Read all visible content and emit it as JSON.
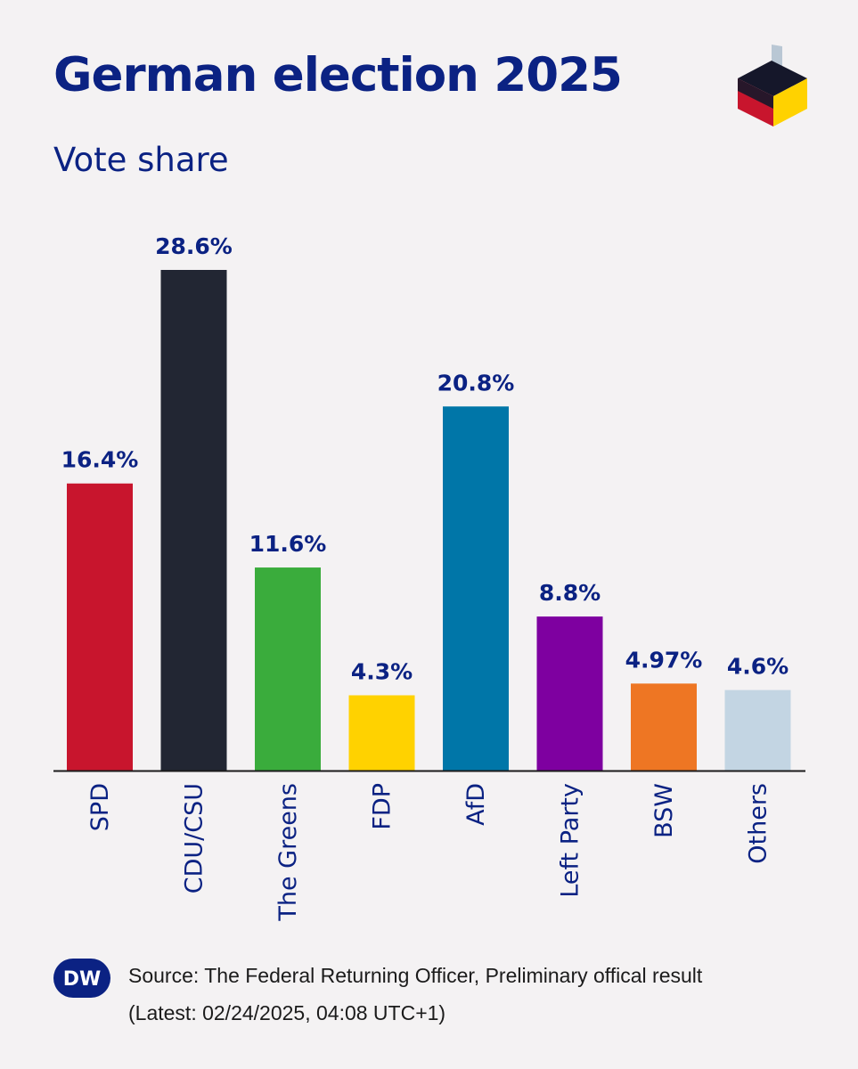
{
  "header": {
    "title": "German election 2025",
    "subtitle": "Vote share"
  },
  "chart_data": {
    "type": "bar",
    "title": "German election 2025",
    "subtitle": "Vote share",
    "categories": [
      "SPD",
      "CDU/CSU",
      "The Greens",
      "FDP",
      "AfD",
      "Left Party",
      "BSW",
      "Others"
    ],
    "values": [
      16.4,
      28.6,
      11.6,
      4.3,
      20.8,
      8.8,
      4.97,
      4.6
    ],
    "value_labels": [
      "16.4%",
      "28.6%",
      "11.6%",
      "4.3%",
      "20.8%",
      "8.8%",
      "4.97%",
      "4.6%"
    ],
    "colors": [
      "#c8152d",
      "#222633",
      "#3aac3c",
      "#ffd200",
      "#0076a8",
      "#7e00a0",
      "#ee7623",
      "#c3d5e3"
    ],
    "ylim": [
      0,
      28.6
    ],
    "grid": false,
    "legend": "none",
    "xlabel": "",
    "ylabel": ""
  },
  "footer": {
    "logo_text": "DW",
    "source": "Source: The Federal Returning Officer, Preliminary offical result",
    "latest": "(Latest: 02/24/2025, 04:08 UTC+1)"
  },
  "colors": {
    "text": "#0b2283",
    "background": "#f4f2f3",
    "axis": "#1b1b1b"
  }
}
